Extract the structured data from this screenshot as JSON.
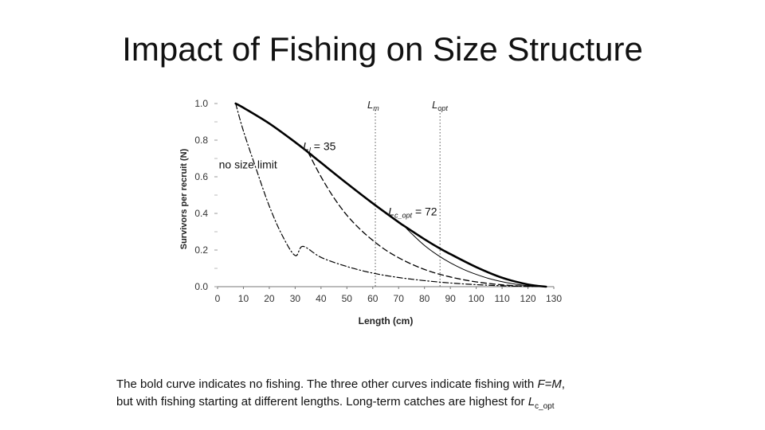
{
  "slide": {
    "title": "Impact of Fishing on Size Structure"
  },
  "caption": {
    "line1_prefix": "The bold curve indicates no fishing. The three other curves indicate fishing with ",
    "line1_formula": "F=M",
    "line1_suffix": ",",
    "line2_prefix": "but with fishing starting at different lengths. Long-term catches are highest for ",
    "line2_symbol": "L",
    "line2_sub": "c_opt"
  },
  "chart_data": {
    "type": "line",
    "xlabel": "Length (cm)",
    "ylabel": "Survivors per recruit (N)",
    "xlim": [
      0,
      130
    ],
    "ylim": [
      0,
      1.0
    ],
    "x_ticks": [
      "0",
      "10",
      "20",
      "30",
      "40",
      "50",
      "60",
      "70",
      "80",
      "90",
      "100",
      "110",
      "120",
      "130"
    ],
    "y_ticks": [
      "0.0",
      "0.2",
      "0.4",
      "0.6",
      "0.8",
      "1.0"
    ],
    "grid": false,
    "series": [
      {
        "style": "bold",
        "x": [
          7,
          10,
          20,
          30,
          35,
          40,
          50,
          60,
          70,
          72,
          80,
          86,
          90,
          100,
          110,
          120,
          127
        ],
        "y": [
          1.0,
          0.977,
          0.891,
          0.789,
          0.734,
          0.677,
          0.564,
          0.455,
          0.352,
          0.333,
          0.259,
          0.208,
          0.178,
          0.107,
          0.049,
          0.012,
          0.0
        ]
      },
      {
        "style": "dash-dot",
        "x": [
          7,
          10,
          15,
          20,
          25,
          30,
          33,
          40,
          50,
          60,
          70,
          80,
          90,
          100,
          110,
          120,
          127
        ],
        "y": [
          1.0,
          0.85,
          0.64,
          0.44,
          0.28,
          0.17,
          0.22,
          0.16,
          0.11,
          0.074,
          0.05,
          0.033,
          0.02,
          0.011,
          0.005,
          0.001,
          0.0
        ]
      },
      {
        "style": "dashed",
        "x": [
          35,
          40,
          45,
          50,
          55,
          60,
          65,
          70,
          75,
          80,
          85,
          90,
          95,
          100,
          105,
          110,
          115,
          120,
          127
        ],
        "y": [
          0.734,
          0.6,
          0.485,
          0.39,
          0.315,
          0.253,
          0.2,
          0.158,
          0.123,
          0.094,
          0.071,
          0.053,
          0.038,
          0.026,
          0.017,
          0.01,
          0.005,
          0.002,
          0.0
        ]
      },
      {
        "style": "thin",
        "x": [
          72,
          75,
          80,
          85,
          90,
          95,
          100,
          105,
          110,
          115,
          120,
          127
        ],
        "y": [
          0.333,
          0.29,
          0.225,
          0.173,
          0.13,
          0.095,
          0.067,
          0.044,
          0.027,
          0.014,
          0.005,
          0.0
        ]
      }
    ],
    "vlines": [
      {
        "x": 61,
        "label_main": "L",
        "label_sub": "m"
      },
      {
        "x": 86,
        "label_main": "L",
        "label_sub": "opt"
      }
    ],
    "annotations": [
      {
        "text": "no size limit",
        "x": 0.5,
        "y": 0.645
      },
      {
        "main": "L",
        "sub": "l",
        "rest": " = 35",
        "x": 33,
        "y": 0.745
      },
      {
        "main": "L",
        "sub": "c_opt",
        "rest": " = 72",
        "x": 66,
        "y": 0.39
      }
    ]
  }
}
